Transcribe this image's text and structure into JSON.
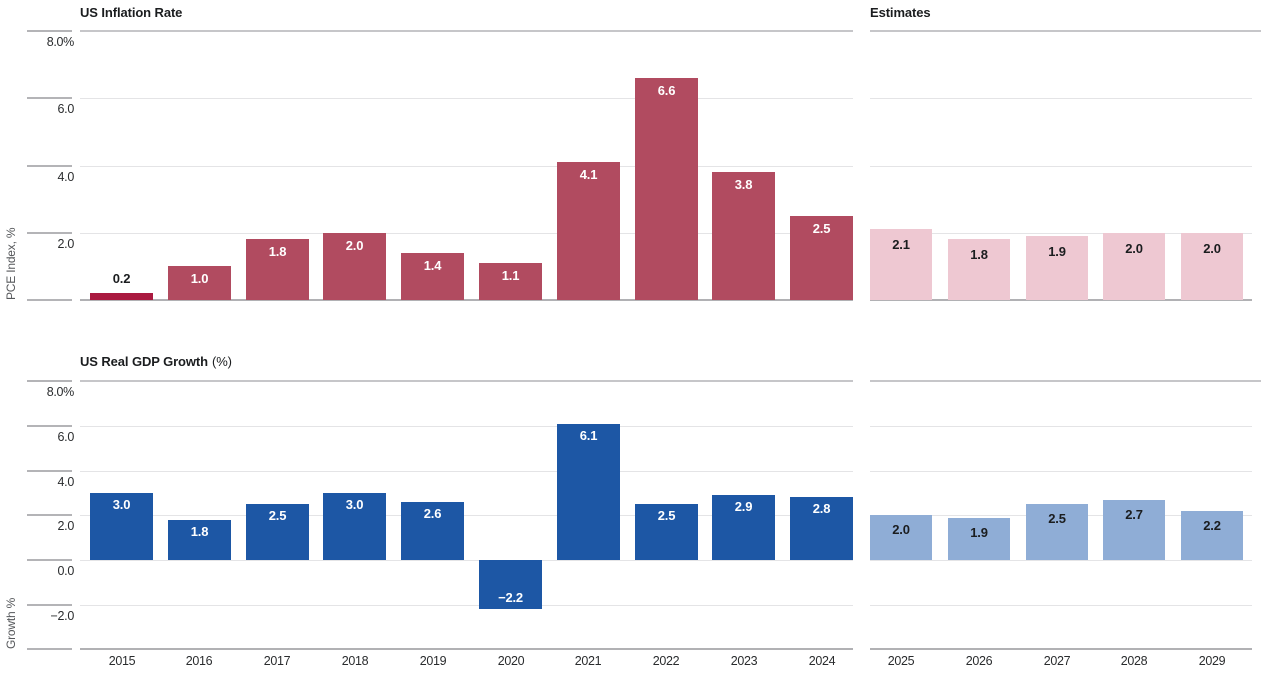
{
  "labels": {
    "estimates": "Estimates"
  },
  "chart_data": [
    {
      "type": "bar",
      "title": "US Inflation Rate",
      "title_suffix": "",
      "ylabel": "PCE Index, %",
      "ylim": [
        0,
        8
      ],
      "grid": "on",
      "yticks": [
        8,
        6,
        4,
        2
      ],
      "ytick_labels": [
        "8.0%",
        "6.0",
        "4.0",
        "2.0"
      ],
      "sections": [
        {
          "name": "historical",
          "categories": [
            "2015",
            "2016",
            "2017",
            "2018",
            "2019",
            "2020",
            "2021",
            "2022",
            "2023",
            "2024"
          ],
          "values": [
            0.2,
            1.0,
            1.8,
            2.0,
            1.4,
            1.1,
            4.1,
            6.6,
            3.8,
            2.5
          ],
          "bar_color": "#b14b60",
          "highlight_first_bar_color": "#aa1a40",
          "label_color": "#ffffff"
        },
        {
          "name": "estimates",
          "categories": [
            "2025",
            "2026",
            "2027",
            "2028",
            "2029"
          ],
          "values": [
            2.1,
            1.8,
            1.9,
            2.0,
            2.0
          ],
          "bar_color": "#eec8d2",
          "label_color": "#1b1d1f"
        }
      ]
    },
    {
      "type": "bar",
      "title": "US Real GDP Growth",
      "title_suffix": "(%)",
      "ylabel": "Growth %",
      "ylim": [
        -4,
        8
      ],
      "grid": "on",
      "yticks": [
        8,
        6,
        4,
        2,
        0,
        -2
      ],
      "ytick_labels": [
        "8.0%",
        "6.0",
        "4.0",
        "2.0",
        "0.0",
        "−2.0"
      ],
      "sections": [
        {
          "name": "historical",
          "categories": [
            "2015",
            "2016",
            "2017",
            "2018",
            "2019",
            "2020",
            "2021",
            "2022",
            "2023",
            "2024"
          ],
          "values": [
            3.0,
            1.8,
            2.5,
            3.0,
            2.6,
            -2.2,
            6.1,
            2.5,
            2.9,
            2.8
          ],
          "bar_color": "#1d57a5",
          "label_color": "#ffffff"
        },
        {
          "name": "estimates",
          "categories": [
            "2025",
            "2026",
            "2027",
            "2028",
            "2029"
          ],
          "values": [
            2.0,
            1.9,
            2.5,
            2.7,
            2.2
          ],
          "bar_color": "#8fadd6",
          "label_color": "#1b1d1f"
        }
      ]
    }
  ]
}
